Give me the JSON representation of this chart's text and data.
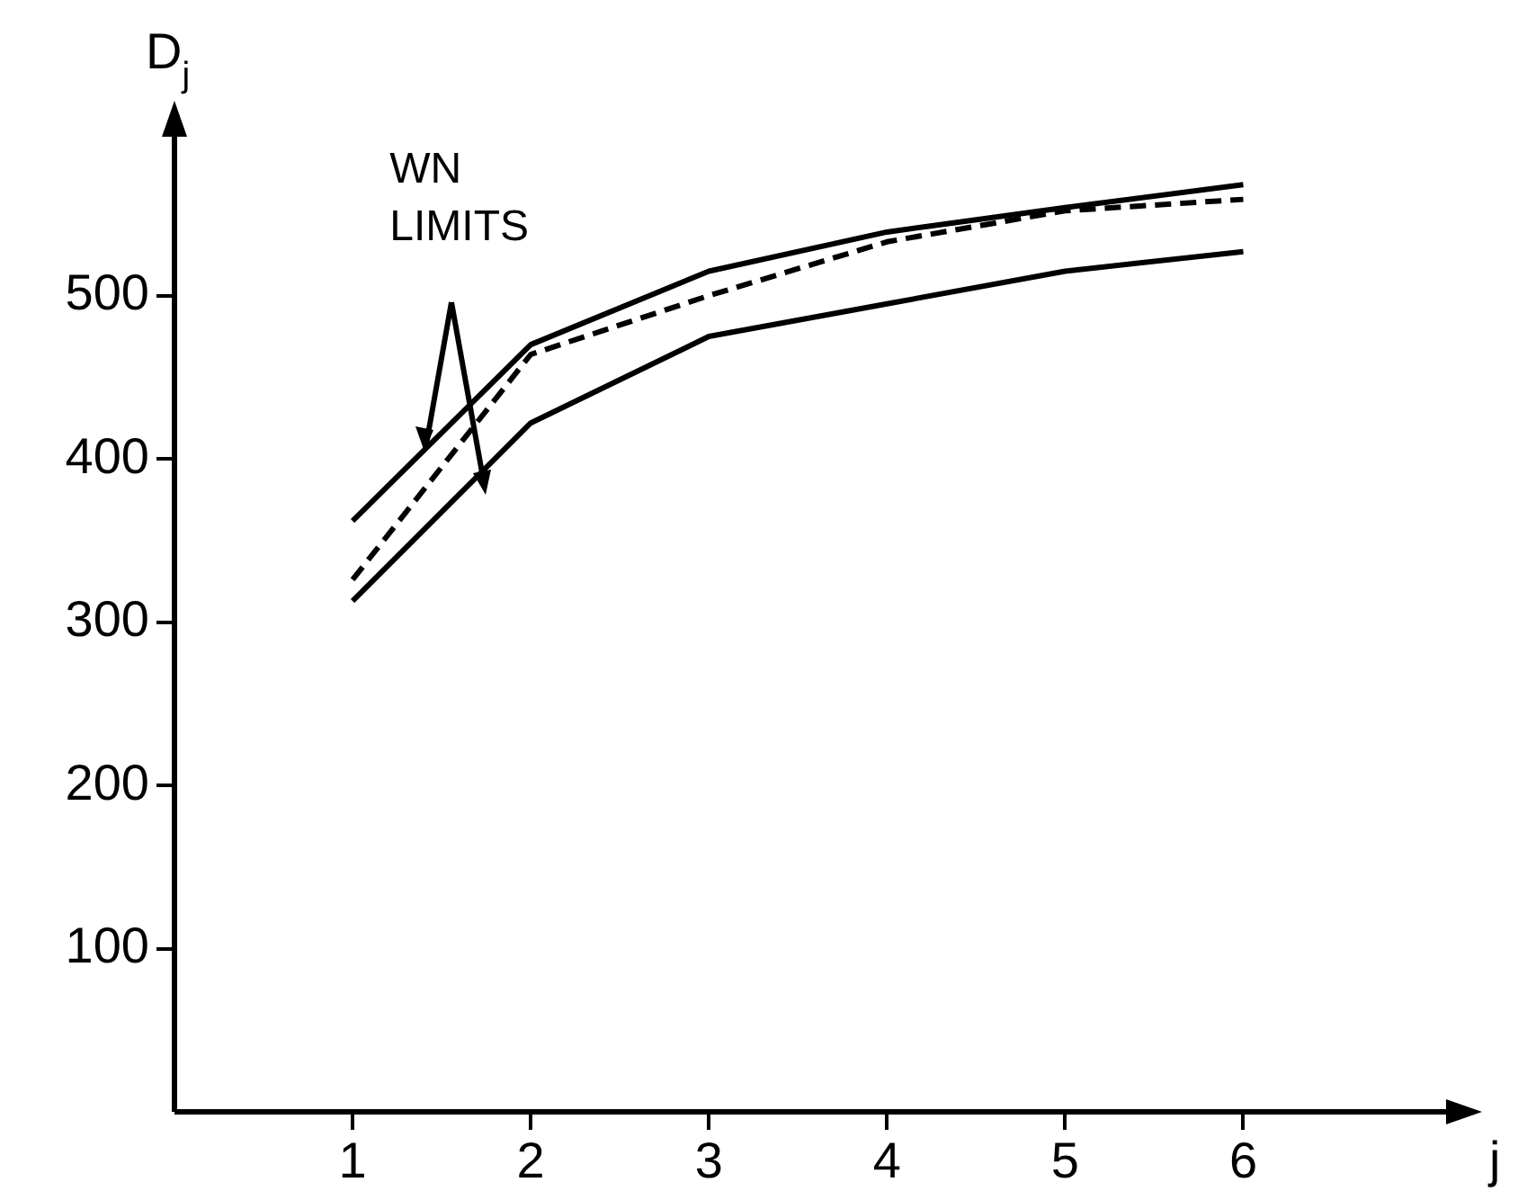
{
  "chart_data": {
    "type": "line",
    "xlabel": "j",
    "ylabel": "D$_{j}$",
    "annotations": [
      {
        "text": "WN\nLIMITS",
        "x": 1.4,
        "y": 405
      }
    ],
    "x": [
      1,
      2,
      3,
      4,
      5,
      6
    ],
    "series": [
      {
        "color": "#000000",
        "line_style": "solid",
        "values": [
          362,
          470,
          515,
          539,
          554,
          568
        ]
      },
      {
        "color": "#000000",
        "line_style": "dashed",
        "values": [
          326,
          464,
          500,
          533,
          552,
          559
        ]
      },
      {
        "color": "#000000",
        "line_style": "solid",
        "values": [
          313,
          422,
          475,
          495,
          515,
          527
        ]
      }
    ],
    "xlim": [
      0,
      7.3
    ],
    "ylim": [
      0,
      615
    ],
    "xticks": [
      1,
      2,
      3,
      4,
      5,
      6
    ],
    "yticks": [
      100,
      200,
      300,
      400,
      500
    ],
    "grid": false,
    "legend": false,
    "marker": "none"
  }
}
